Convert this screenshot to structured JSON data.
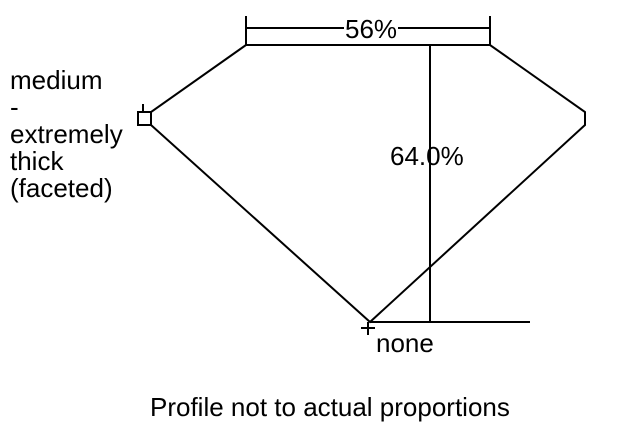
{
  "table_percent": "56%",
  "depth_percent": "64.0%",
  "girdle_label": [
    "medium",
    "-",
    "extremely",
    "thick",
    "(faceted)"
  ],
  "culet_label": "none",
  "footnote": "Profile not to actual proportions",
  "line_color": "#000000"
}
